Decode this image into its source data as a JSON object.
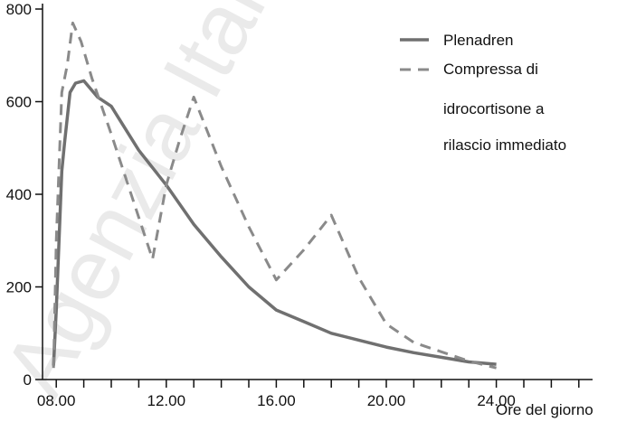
{
  "chart_data": {
    "type": "line",
    "xlabel": "Ore del giorno",
    "ylabel": "",
    "x_ticks": [
      "08.00",
      "12.00",
      "16.00",
      "20.00",
      "24.00"
    ],
    "y_ticks": [
      "0",
      "200",
      "400",
      "600",
      "800"
    ],
    "xlim": [
      7.5,
      27.5
    ],
    "ylim": [
      0,
      800
    ],
    "legend": {
      "placement": "top-right",
      "entries": [
        "Plenadren",
        "Compressa di",
        "idrocortisone a",
        "rilascio immediato"
      ]
    },
    "series": [
      {
        "name": "Plenadren",
        "style": "solid",
        "color": "#707070",
        "x": [
          7.9,
          8.0,
          8.2,
          8.3,
          8.5,
          8.7,
          9.0,
          9.5,
          10.0,
          11.0,
          12.0,
          13.0,
          14.0,
          15.0,
          16.0,
          17.0,
          18.0,
          19.0,
          20.0,
          21.0,
          22.0,
          23.0,
          24.0
        ],
        "values": [
          30,
          150,
          450,
          510,
          620,
          640,
          645,
          610,
          590,
          495,
          420,
          335,
          265,
          200,
          150,
          125,
          100,
          85,
          70,
          58,
          48,
          38,
          33
        ]
      },
      {
        "name": "Compressa di idrocortisone a rilascio immediato",
        "style": "dashed",
        "color": "#8a8a8a",
        "x": [
          7.9,
          8.0,
          8.2,
          8.4,
          8.6,
          8.9,
          9.3,
          10.0,
          11.0,
          11.5,
          12.0,
          12.5,
          13.0,
          14.0,
          15.0,
          16.0,
          17.0,
          18.0,
          19.0,
          20.0,
          21.0,
          22.0,
          23.0,
          24.0
        ],
        "values": [
          25,
          300,
          620,
          680,
          770,
          730,
          650,
          530,
          350,
          260,
          420,
          520,
          610,
          460,
          330,
          215,
          280,
          355,
          220,
          120,
          80,
          60,
          40,
          25
        ]
      }
    ]
  },
  "watermark": "Agenzia Italiana del Farmaco"
}
